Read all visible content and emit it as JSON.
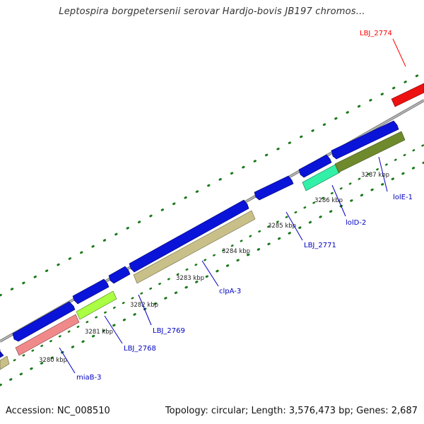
{
  "title": "Leptospira borgpetersenii serovar Hardjo-bovis JB197 chromos...",
  "footer": {
    "accession": "Accession: NC_008510",
    "summary": "Topology: circular; Length: 3,576,473 bp; Genes: 2,687"
  },
  "scale_labels": [
    "3280 kbp",
    "3281 kbp",
    "3282 kbp",
    "3283 kbp",
    "3284 kbp",
    "3285 kbp",
    "3286 kbp",
    "3287 kbp"
  ],
  "gene_labels": [
    {
      "text": "LBJ_2774",
      "color": "#ff0000"
    },
    {
      "text": "lolE-1",
      "color": "#0000c0"
    },
    {
      "text": "lolD-2",
      "color": "#0000c0"
    },
    {
      "text": "LBJ_2771",
      "color": "#0000c0"
    },
    {
      "text": "clpA-3",
      "color": "#0000c0"
    },
    {
      "text": "LBJ_2769",
      "color": "#0000c0"
    },
    {
      "text": "LBJ_2768",
      "color": "#0000c0"
    },
    {
      "text": "miaB-3",
      "color": "#0000c0"
    }
  ],
  "colors": {
    "backbone": "#8a8a8a",
    "forward_gene": "#0a14d8",
    "reverse_red": "#ee1111",
    "spring_green": "#33f0a8",
    "olive": "#6e8a2c",
    "khaki": "#c8c088",
    "pink": "#f08a8a",
    "lime": "#aaff44",
    "tick": "#1a7a1a"
  }
}
